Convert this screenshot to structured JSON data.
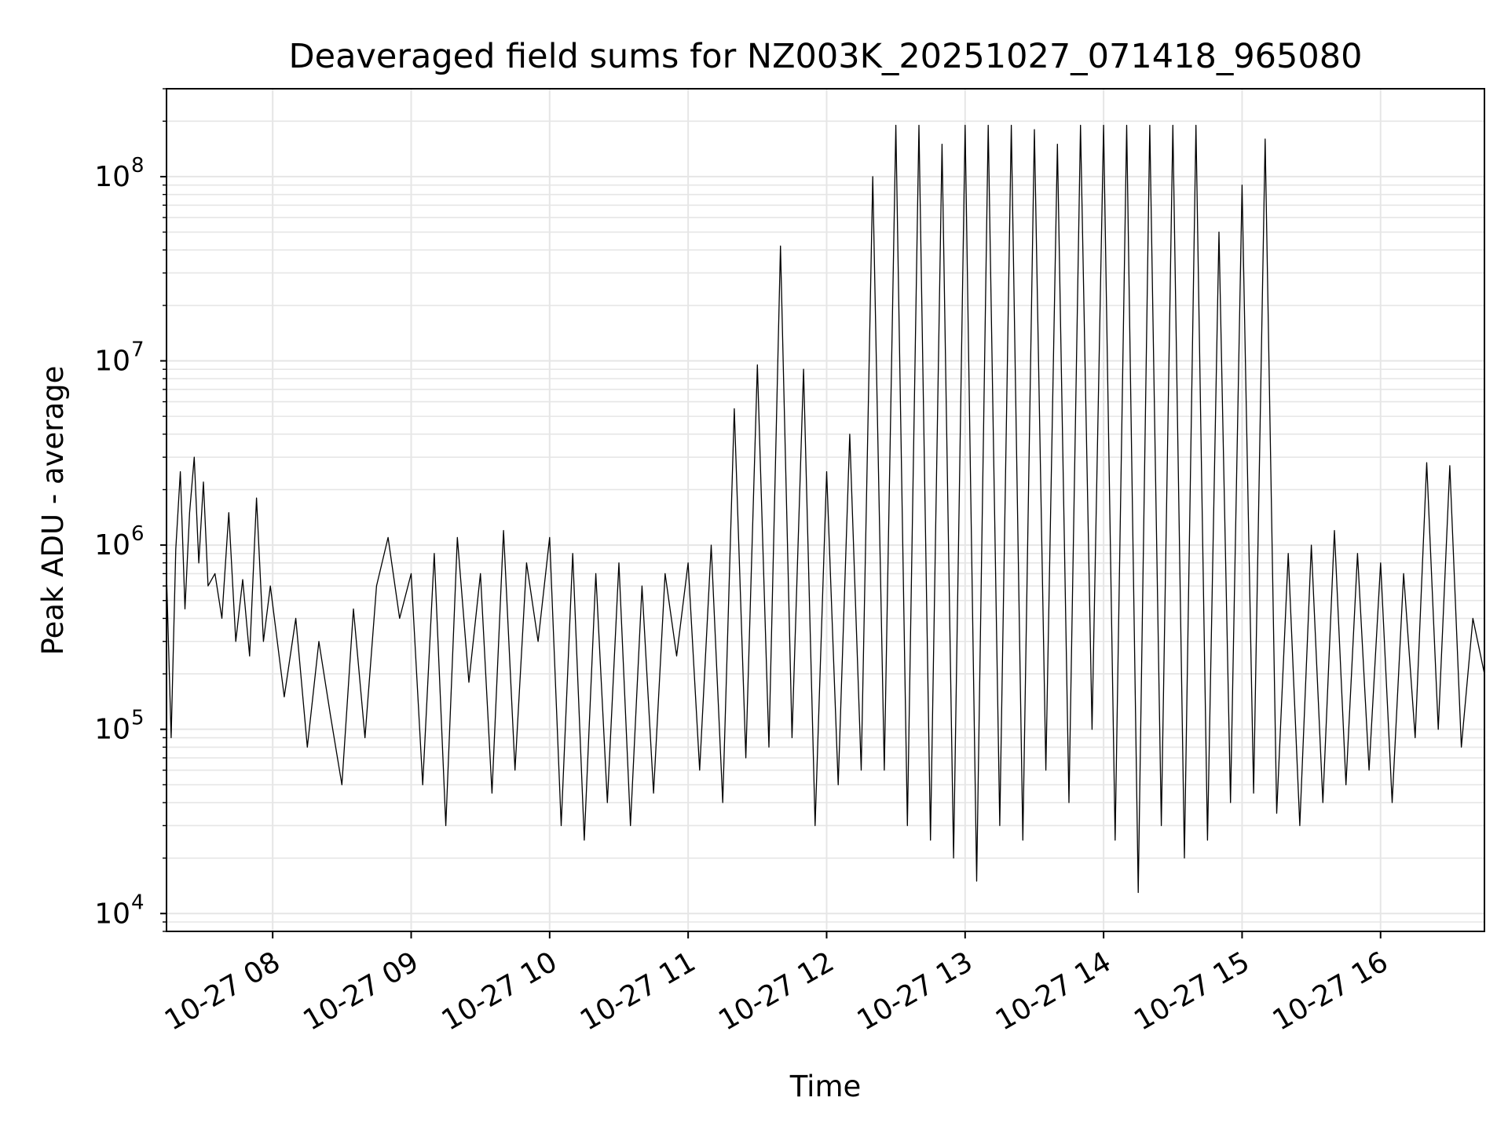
{
  "chart_data": {
    "type": "line",
    "title": "Deaveraged field sums for NZ003K_20251027_071418_965080",
    "xlabel": "Time",
    "ylabel": "Peak ADU - average",
    "xlim": [
      "2025-10-27 07:14",
      "2025-10-27 16:45"
    ],
    "ylim": [
      8000,
      300000000
    ],
    "yscale": "log",
    "grid": true,
    "line_color": "#000000",
    "x_tick_labels": [
      "10-27 08",
      "10-27 09",
      "10-27 10",
      "10-27 11",
      "10-27 12",
      "10-27 13",
      "10-27 14",
      "10-27 15",
      "10-27 16"
    ],
    "x_ticks": [
      "2025-10-27 08:00",
      "2025-10-27 09:00",
      "2025-10-27 10:00",
      "2025-10-27 11:00",
      "2025-10-27 12:00",
      "2025-10-27 13:00",
      "2025-10-27 14:00",
      "2025-10-27 15:00",
      "2025-10-27 16:00"
    ],
    "y_tick_labels": [
      {
        "base": "10",
        "exp": "4",
        "value": 10000
      },
      {
        "base": "10",
        "exp": "5",
        "value": 100000
      },
      {
        "base": "10",
        "exp": "6",
        "value": 1000000
      },
      {
        "base": "10",
        "exp": "7",
        "value": 10000000
      },
      {
        "base": "10",
        "exp": "8",
        "value": 100000000
      }
    ],
    "series": [
      {
        "values_note_free": true,
        "x": [
          "2025-10-27 07:14",
          "2025-10-27 07:16",
          "2025-10-27 07:18",
          "2025-10-27 07:20",
          "2025-10-27 07:22",
          "2025-10-27 07:24",
          "2025-10-27 07:26",
          "2025-10-27 07:28",
          "2025-10-27 07:30",
          "2025-10-27 07:32",
          "2025-10-27 07:35",
          "2025-10-27 07:38",
          "2025-10-27 07:41",
          "2025-10-27 07:44",
          "2025-10-27 07:47",
          "2025-10-27 07:50",
          "2025-10-27 07:53",
          "2025-10-27 07:56",
          "2025-10-27 07:59",
          "2025-10-27 08:05",
          "2025-10-27 08:10",
          "2025-10-27 08:15",
          "2025-10-27 08:20",
          "2025-10-27 08:25",
          "2025-10-27 08:30",
          "2025-10-27 08:35",
          "2025-10-27 08:40",
          "2025-10-27 08:45",
          "2025-10-27 08:50",
          "2025-10-27 08:55",
          "2025-10-27 09:00",
          "2025-10-27 09:05",
          "2025-10-27 09:10",
          "2025-10-27 09:15",
          "2025-10-27 09:20",
          "2025-10-27 09:25",
          "2025-10-27 09:30",
          "2025-10-27 09:35",
          "2025-10-27 09:40",
          "2025-10-27 09:45",
          "2025-10-27 09:50",
          "2025-10-27 09:55",
          "2025-10-27 10:00",
          "2025-10-27 10:05",
          "2025-10-27 10:10",
          "2025-10-27 10:15",
          "2025-10-27 10:20",
          "2025-10-27 10:25",
          "2025-10-27 10:30",
          "2025-10-27 10:35",
          "2025-10-27 10:40",
          "2025-10-27 10:45",
          "2025-10-27 10:50",
          "2025-10-27 10:55",
          "2025-10-27 11:00",
          "2025-10-27 11:05",
          "2025-10-27 11:10",
          "2025-10-27 11:15",
          "2025-10-27 11:20",
          "2025-10-27 11:25",
          "2025-10-27 11:30",
          "2025-10-27 11:35",
          "2025-10-27 11:40",
          "2025-10-27 11:45",
          "2025-10-27 11:50",
          "2025-10-27 11:55",
          "2025-10-27 12:00",
          "2025-10-27 12:05",
          "2025-10-27 12:10",
          "2025-10-27 12:15",
          "2025-10-27 12:20",
          "2025-10-27 12:25",
          "2025-10-27 12:30",
          "2025-10-27 12:35",
          "2025-10-27 12:40",
          "2025-10-27 12:45",
          "2025-10-27 12:50",
          "2025-10-27 12:55",
          "2025-10-27 13:00",
          "2025-10-27 13:05",
          "2025-10-27 13:10",
          "2025-10-27 13:15",
          "2025-10-27 13:20",
          "2025-10-27 13:25",
          "2025-10-27 13:30",
          "2025-10-27 13:35",
          "2025-10-27 13:40",
          "2025-10-27 13:45",
          "2025-10-27 13:50",
          "2025-10-27 13:55",
          "2025-10-27 14:00",
          "2025-10-27 14:05",
          "2025-10-27 14:10",
          "2025-10-27 14:15",
          "2025-10-27 14:20",
          "2025-10-27 14:25",
          "2025-10-27 14:30",
          "2025-10-27 14:35",
          "2025-10-27 14:40",
          "2025-10-27 14:45",
          "2025-10-27 14:50",
          "2025-10-27 14:55",
          "2025-10-27 15:00",
          "2025-10-27 15:05",
          "2025-10-27 15:10",
          "2025-10-27 15:15",
          "2025-10-27 15:20",
          "2025-10-27 15:25",
          "2025-10-27 15:30",
          "2025-10-27 15:35",
          "2025-10-27 15:40",
          "2025-10-27 15:45",
          "2025-10-27 15:50",
          "2025-10-27 15:55",
          "2025-10-27 16:00",
          "2025-10-27 16:05",
          "2025-10-27 16:10",
          "2025-10-27 16:15",
          "2025-10-27 16:20",
          "2025-10-27 16:25",
          "2025-10-27 16:30",
          "2025-10-27 16:35",
          "2025-10-27 16:40",
          "2025-10-27 16:45"
        ],
        "values": [
          700000,
          90000,
          950000,
          2500000,
          450000,
          1500000,
          3000000,
          800000,
          2200000,
          600000,
          700000,
          400000,
          1500000,
          300000,
          650000,
          250000,
          1800000,
          300000,
          600000,
          150000,
          400000,
          80000,
          300000,
          120000,
          50000,
          450000,
          90000,
          600000,
          1100000,
          400000,
          700000,
          50000,
          900000,
          30000,
          1100000,
          180000,
          700000,
          45000,
          1200000,
          60000,
          800000,
          300000,
          1100000,
          30000,
          900000,
          25000,
          700000,
          40000,
          800000,
          30000,
          600000,
          45000,
          700000,
          250000,
          800000,
          60000,
          1000000,
          40000,
          5500000,
          70000,
          9500000,
          80000,
          42000000,
          90000,
          9000000,
          30000,
          2500000,
          50000,
          4000000,
          60000,
          100000000,
          60000,
          190000000,
          30000,
          190000000,
          25000,
          150000000,
          20000,
          190000000,
          15000,
          190000000,
          30000,
          190000000,
          25000,
          180000000,
          60000,
          150000000,
          40000,
          190000000,
          100000,
          190000000,
          25000,
          190000000,
          13000,
          190000000,
          30000,
          190000000,
          20000,
          190000000,
          25000,
          50000000,
          40000,
          90000000,
          45000,
          160000000,
          35000,
          900000,
          30000,
          1000000,
          40000,
          1200000,
          50000,
          900000,
          60000,
          800000,
          40000,
          700000,
          90000,
          2800000,
          100000,
          2700000,
          80000,
          400000,
          200000
        ]
      }
    ]
  }
}
